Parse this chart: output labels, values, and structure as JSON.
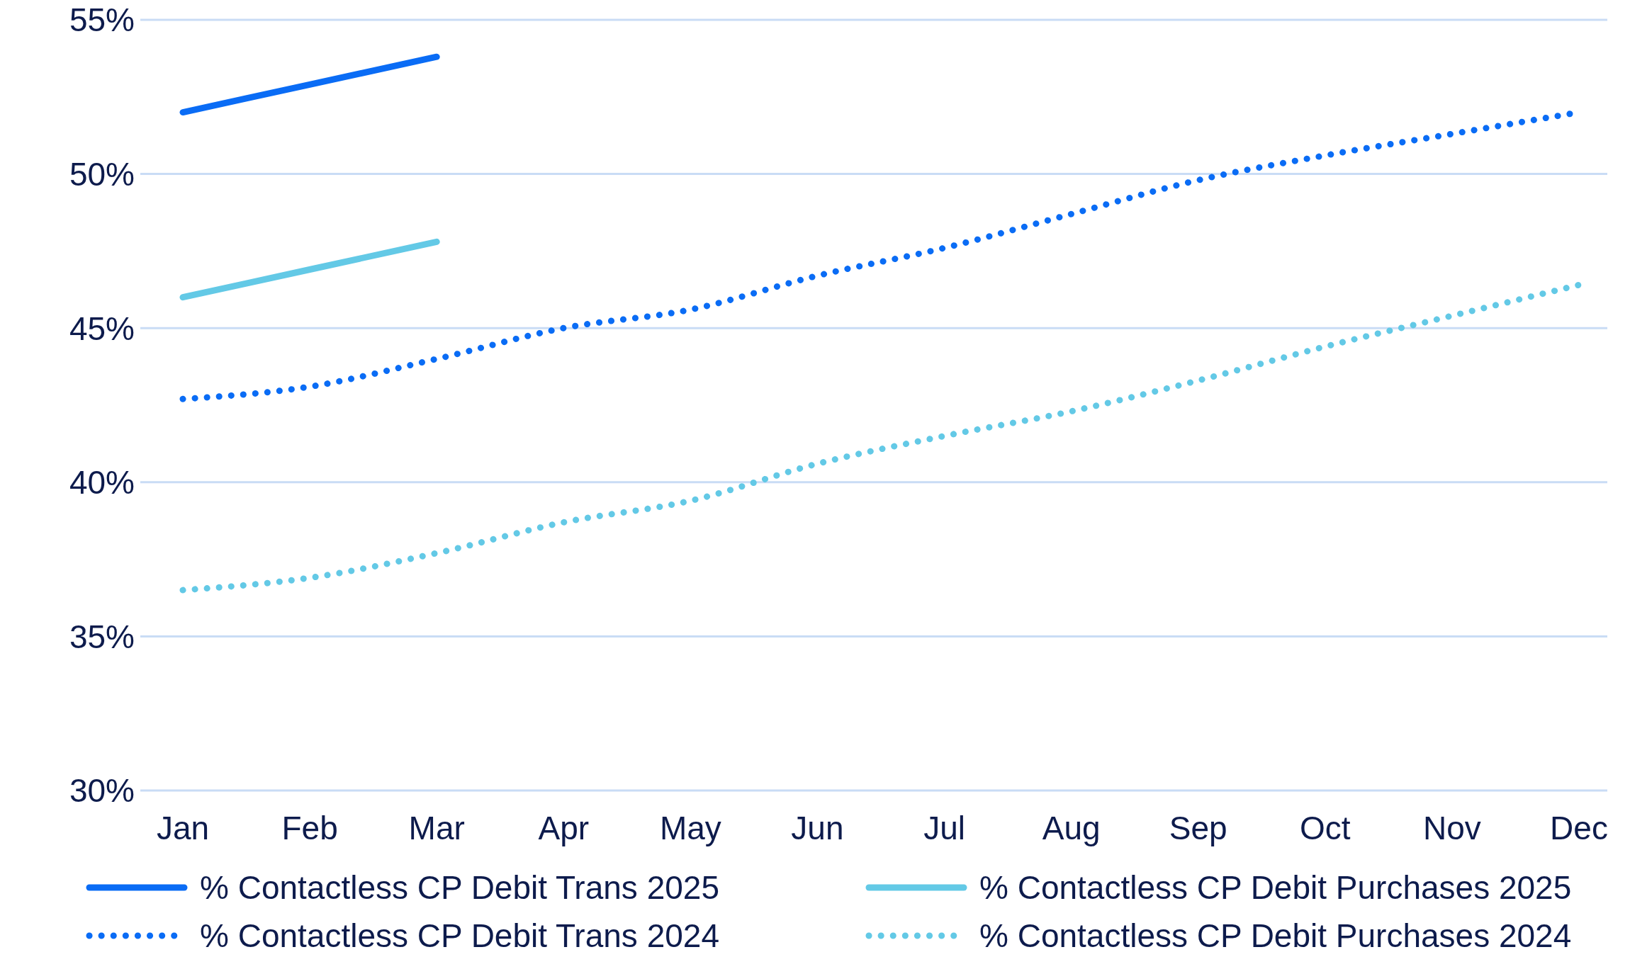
{
  "chart_data": {
    "type": "line",
    "categories": [
      "Jan",
      "Feb",
      "Mar",
      "Apr",
      "May",
      "Jun",
      "Jul",
      "Aug",
      "Sep",
      "Oct",
      "Nov",
      "Dec"
    ],
    "series": [
      {
        "name": "% Contactless CP Debit Trans 2025",
        "color": "#0a6cf5",
        "line_style": "solid",
        "values": [
          52.0,
          52.9,
          53.8,
          null,
          null,
          null,
          null,
          null,
          null,
          null,
          null,
          null
        ]
      },
      {
        "name": "% Contactless CP Debit Purchases 2025",
        "color": "#63c9e6",
        "line_style": "solid",
        "values": [
          46.0,
          46.9,
          47.8,
          null,
          null,
          null,
          null,
          null,
          null,
          null,
          null,
          null
        ]
      },
      {
        "name": "% Contactless CP Debit Trans 2024",
        "color": "#0a6cf5",
        "line_style": "dotted",
        "values": [
          42.7,
          43.1,
          44.0,
          45.0,
          45.6,
          46.7,
          47.6,
          48.7,
          49.8,
          50.6,
          51.3,
          52.0
        ]
      },
      {
        "name": "% Contactless CP Debit Purchases 2024",
        "color": "#63c9e6",
        "line_style": "dotted",
        "values": [
          36.5,
          36.9,
          37.7,
          38.7,
          39.4,
          40.6,
          41.5,
          42.3,
          43.3,
          44.4,
          45.4,
          46.4
        ]
      }
    ],
    "ylim": [
      30,
      55
    ],
    "yticks": [
      {
        "value": 30,
        "label": "30%"
      },
      {
        "value": 35,
        "label": "35%"
      },
      {
        "value": 40,
        "label": "40%"
      },
      {
        "value": 45,
        "label": "45%"
      },
      {
        "value": 50,
        "label": "50%"
      },
      {
        "value": 55,
        "label": "55%"
      }
    ],
    "grid": "y",
    "legend": "bottom",
    "marker": "none"
  }
}
